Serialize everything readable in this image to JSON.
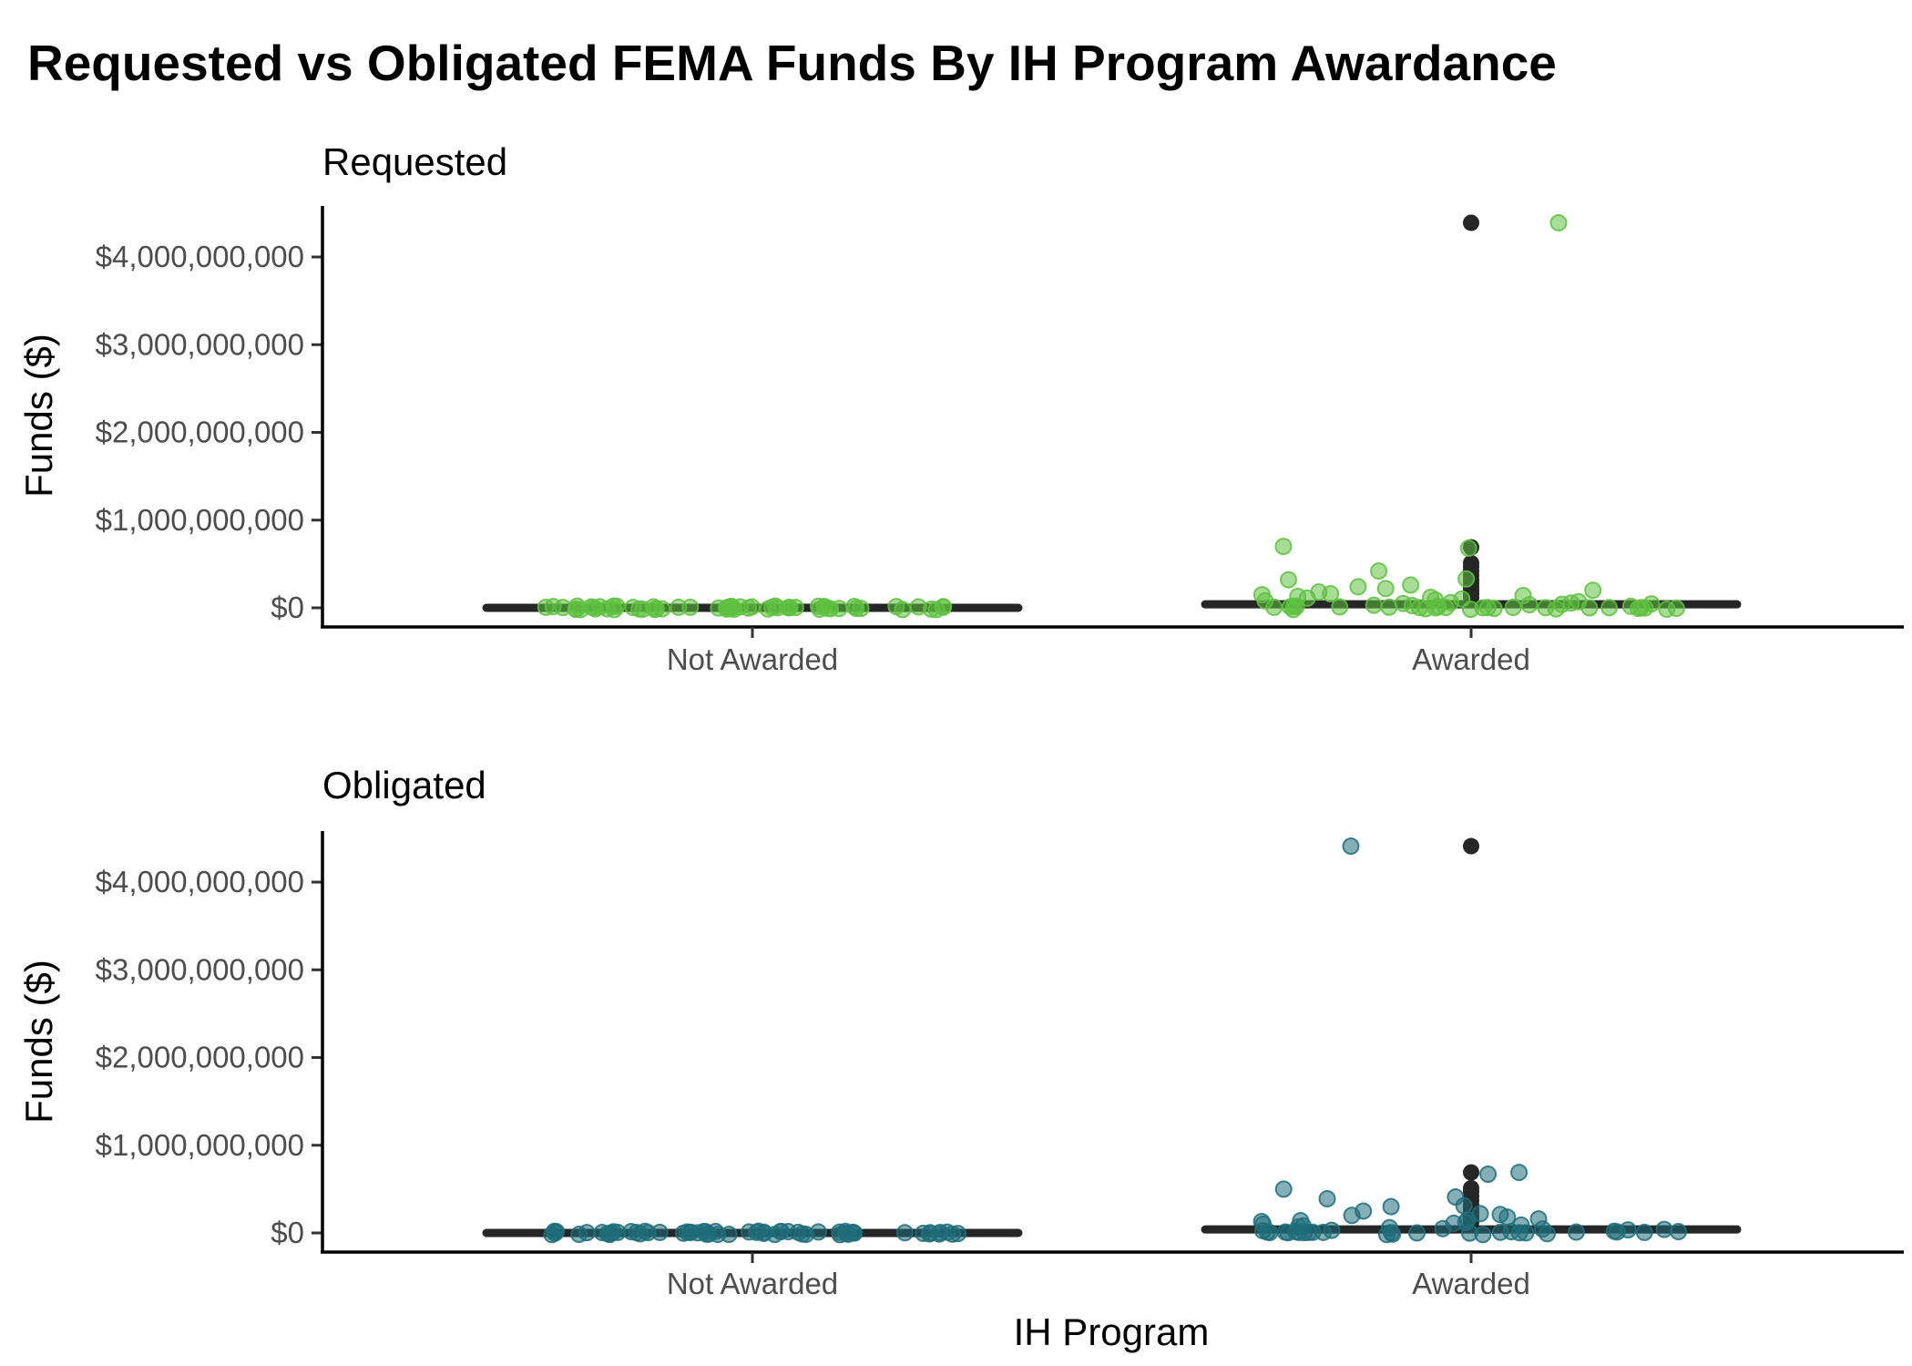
{
  "title": "Requested vs Obligated FEMA Funds By IH Program Awardance",
  "xlabel": "IH Program",
  "colors": {
    "requested": "#5ec13f",
    "obligated": "#1f6e7a",
    "box": "#262626"
  },
  "chart_data": [
    {
      "type": "box",
      "title": "Requested",
      "xlabel": "IH Program",
      "ylabel": "Funds ($)",
      "categories": [
        "Not Awarded",
        "Awarded"
      ],
      "yticks": [
        0,
        1000000000,
        2000000000,
        3000000000,
        4000000000
      ],
      "ytick_labels": [
        "$0",
        "$1,000,000,000",
        "$2,000,000,000",
        "$3,000,000,000",
        "$4,000,000,000"
      ],
      "ylim": [
        -200000000,
        4600000000
      ],
      "point_color": "#5ec13f",
      "boxes": [
        {
          "category": "Not Awarded",
          "q1": 0,
          "median": 0,
          "q3": 0,
          "whisker_low": 0,
          "whisker_high": 0,
          "outliers": []
        },
        {
          "category": "Awarded",
          "q1": 5000000,
          "median": 15000000,
          "q3": 40000000,
          "whisker_low": 0,
          "whisker_high": 90000000,
          "outliers": [
            120000000,
            160000000,
            200000000,
            240000000,
            280000000,
            320000000,
            370000000,
            420000000,
            470000000,
            510000000,
            690000000,
            4390000000
          ]
        }
      ],
      "points": [
        {
          "category": "Not Awarded",
          "values": [
            0,
            0,
            0,
            0,
            0,
            0,
            0,
            0,
            0,
            0,
            0,
            0,
            0,
            0,
            0,
            0,
            0,
            0,
            0,
            0,
            0,
            0,
            0,
            0,
            0,
            0,
            0,
            0,
            0,
            0,
            0,
            0,
            0,
            0,
            0,
            0,
            0,
            0,
            0,
            0,
            0,
            0,
            0,
            0,
            0,
            0,
            0,
            0,
            0,
            0,
            0,
            0,
            0,
            0,
            0,
            0,
            0,
            0,
            0,
            0
          ]
        },
        {
          "category": "Awarded",
          "values": [
            4390000000,
            680000000,
            700000000,
            420000000,
            330000000,
            320000000,
            260000000,
            240000000,
            220000000,
            200000000,
            180000000,
            160000000,
            150000000,
            140000000,
            130000000,
            120000000,
            110000000,
            100000000,
            90000000,
            80000000,
            70000000,
            60000000,
            55000000,
            50000000,
            45000000,
            40000000,
            35000000,
            30000000,
            25000000,
            20000000,
            18000000,
            15000000,
            12000000,
            10000000,
            8000000,
            6000000,
            5000000,
            4000000,
            3000000,
            2000000,
            1000000,
            500000,
            0,
            0,
            0,
            0,
            0,
            0,
            0,
            0,
            0,
            0,
            0,
            0,
            0,
            0
          ]
        }
      ]
    },
    {
      "type": "box",
      "title": "Obligated",
      "xlabel": "IH Program",
      "ylabel": "Funds ($)",
      "categories": [
        "Not Awarded",
        "Awarded"
      ],
      "yticks": [
        0,
        1000000000,
        2000000000,
        3000000000,
        4000000000
      ],
      "ytick_labels": [
        "$0",
        "$1,000,000,000",
        "$2,000,000,000",
        "$3,000,000,000",
        "$4,000,000,000"
      ],
      "ylim": [
        -200000000,
        4600000000
      ],
      "point_color": "#1f6e7a",
      "boxes": [
        {
          "category": "Not Awarded",
          "q1": 0,
          "median": 0,
          "q3": 0,
          "whisker_low": 0,
          "whisker_high": 0,
          "outliers": []
        },
        {
          "category": "Awarded",
          "q1": 5000000,
          "median": 15000000,
          "q3": 40000000,
          "whisker_low": 0,
          "whisker_high": 90000000,
          "outliers": [
            120000000,
            160000000,
            200000000,
            240000000,
            280000000,
            320000000,
            370000000,
            420000000,
            470000000,
            510000000,
            690000000,
            4410000000
          ]
        }
      ],
      "points": [
        {
          "category": "Not Awarded",
          "values": [
            0,
            0,
            0,
            0,
            0,
            0,
            0,
            0,
            0,
            0,
            0,
            0,
            0,
            0,
            0,
            0,
            0,
            0,
            0,
            0,
            0,
            0,
            0,
            0,
            0,
            0,
            0,
            0,
            0,
            0,
            0,
            0,
            0,
            0,
            0,
            0,
            0,
            0,
            0,
            0,
            0,
            0,
            0,
            0,
            0,
            0,
            0,
            0,
            0,
            0,
            0,
            0,
            0,
            0,
            0,
            0,
            0,
            0,
            0,
            0
          ]
        },
        {
          "category": "Awarded",
          "values": [
            4410000000,
            690000000,
            670000000,
            500000000,
            410000000,
            390000000,
            310000000,
            300000000,
            250000000,
            220000000,
            210000000,
            200000000,
            180000000,
            160000000,
            150000000,
            140000000,
            130000000,
            120000000,
            110000000,
            100000000,
            90000000,
            80000000,
            70000000,
            60000000,
            50000000,
            45000000,
            40000000,
            35000000,
            30000000,
            25000000,
            20000000,
            15000000,
            12000000,
            10000000,
            8000000,
            6000000,
            5000000,
            4000000,
            3000000,
            2000000,
            1000000,
            500000,
            0,
            0,
            0,
            0,
            0,
            0,
            0,
            0,
            0,
            0,
            0,
            0,
            0,
            0
          ]
        }
      ]
    }
  ]
}
